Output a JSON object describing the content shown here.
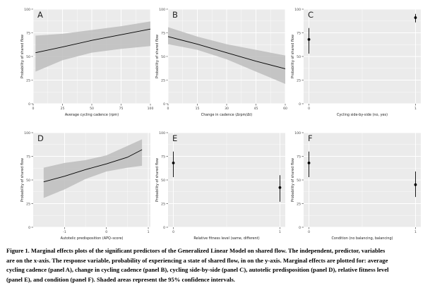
{
  "style": {
    "panel_bg": "#ebebeb",
    "grid_color": "#ffffff",
    "line_color": "#000000",
    "band_color": "#bdbdbd",
    "text_color": "#222222"
  },
  "chart_data": [
    {
      "panel": "A",
      "type": "line",
      "xlabel": "Average cycling cadence (rpm)",
      "ylabel": "Probability of shared flow",
      "xlim": [
        0,
        100
      ],
      "ylim": [
        0,
        100
      ],
      "xticks": [
        0,
        25,
        50,
        75,
        100
      ],
      "xticklabels": [
        "0",
        "25",
        "50",
        "75",
        "100"
      ],
      "yticks": [
        0,
        25,
        50,
        75,
        100
      ],
      "yticklabels": [
        "0",
        "25",
        "50",
        "75",
        "100"
      ],
      "series": [
        {
          "name": "fit",
          "x": [
            2,
            25,
            50,
            75,
            100
          ],
          "y": [
            54,
            60,
            67,
            73,
            79
          ],
          "lower": [
            34,
            46,
            54,
            58,
            61
          ],
          "upper": [
            72,
            74,
            78,
            82,
            87
          ]
        }
      ]
    },
    {
      "panel": "B",
      "type": "line",
      "xlabel": "Change in cadence (Δrpm/Δt)",
      "ylabel": "Probability of shared flow",
      "xlim": [
        0,
        60
      ],
      "ylim": [
        0,
        100
      ],
      "xticks": [
        0,
        15,
        30,
        45,
        60
      ],
      "xticklabels": [
        "0",
        "15",
        "30",
        "45",
        "60"
      ],
      "yticks": [
        0,
        25,
        50,
        75,
        100
      ],
      "yticklabels": [
        "0",
        "25",
        "50",
        "75",
        "100"
      ],
      "series": [
        {
          "name": "fit",
          "x": [
            0,
            15,
            30,
            45,
            60
          ],
          "y": [
            71,
            63,
            54,
            45,
            37
          ],
          "lower": [
            63,
            57,
            47,
            34,
            21
          ],
          "upper": [
            81,
            71,
            63,
            57,
            51
          ]
        }
      ]
    },
    {
      "panel": "C",
      "type": "scatter",
      "xlabel": "Cycling side-by-side (no, yes)",
      "ylabel": "Probability of shared flow",
      "xlim": [
        -0.05,
        1.05
      ],
      "ylim": [
        0,
        100
      ],
      "xticks": [
        0,
        1
      ],
      "xticklabels": [
        "0",
        "1"
      ],
      "yticks": [
        0,
        25,
        50,
        75,
        100
      ],
      "yticklabels": [
        "0",
        "25",
        "50",
        "75",
        "100"
      ],
      "series": [
        {
          "name": "estimate",
          "x": [
            0,
            1
          ],
          "y": [
            68,
            91
          ],
          "lower": [
            53,
            86
          ],
          "upper": [
            80,
            95
          ]
        }
      ]
    },
    {
      "panel": "D",
      "type": "line",
      "xlabel": "Autotelic predisposition (APQ–score)",
      "ylabel": "Probability of shared flow",
      "xlim": [
        -1.75,
        1.05
      ],
      "ylim": [
        0,
        100
      ],
      "xticks": [
        -1,
        0,
        1
      ],
      "xticklabels": [
        "-1",
        "0",
        "1"
      ],
      "yticks": [
        0,
        25,
        50,
        75,
        100
      ],
      "yticklabels": [
        "0",
        "25",
        "50",
        "75",
        "100"
      ],
      "series": [
        {
          "name": "fit",
          "x": [
            -1.5,
            -1,
            -0.5,
            0,
            0.5,
            0.85
          ],
          "y": [
            48,
            54,
            61,
            67,
            74,
            82
          ],
          "lower": [
            31,
            40,
            51,
            59,
            63,
            65
          ],
          "upper": [
            63,
            68,
            71,
            76,
            86,
            93
          ]
        }
      ]
    },
    {
      "panel": "E",
      "type": "scatter",
      "xlabel": "Relative fitness level (same, different)",
      "ylabel": "Probability of shared flow",
      "xlim": [
        -0.05,
        1.05
      ],
      "ylim": [
        0,
        100
      ],
      "xticks": [
        0,
        1
      ],
      "xticklabels": [
        "0",
        "1"
      ],
      "yticks": [
        0,
        25,
        50,
        75,
        100
      ],
      "yticklabels": [
        "0",
        "25",
        "50",
        "75",
        "100"
      ],
      "series": [
        {
          "name": "estimate",
          "x": [
            0,
            1
          ],
          "y": [
            68,
            42
          ],
          "lower": [
            53,
            27
          ],
          "upper": [
            80,
            55
          ]
        }
      ]
    },
    {
      "panel": "F",
      "type": "scatter",
      "xlabel": "Condition (no balancing, balancing)",
      "ylabel": "Probability of shared flow",
      "xlim": [
        -0.05,
        1.05
      ],
      "ylim": [
        0,
        100
      ],
      "xticks": [
        0,
        1
      ],
      "xticklabels": [
        "0",
        "1"
      ],
      "yticks": [
        0,
        25,
        50,
        75,
        100
      ],
      "yticklabels": [
        "0",
        "25",
        "50",
        "75",
        "100"
      ],
      "series": [
        {
          "name": "estimate",
          "x": [
            0,
            1
          ],
          "y": [
            68,
            45
          ],
          "lower": [
            53,
            32
          ],
          "upper": [
            80,
            59
          ]
        }
      ]
    }
  ],
  "caption": {
    "lines": [
      "Figure 1. Marginal effects plots of the significant predictors of the Generalized Linear Model on shared flow. The independent, predictor, variables",
      "are on the x-axis. The response variable, probability of experiencing a state of shared flow, in on the y-axis. Marginal effects are plotted for: average",
      "cycling cadence (panel A), change in cycling cadence (panel B), cycling side-by-side (panel C), autotelic predisposition (panel D), relative fitness level",
      "(panel E), and condition (panel F). Shaded areas represent the 95% confidence intervals."
    ]
  }
}
